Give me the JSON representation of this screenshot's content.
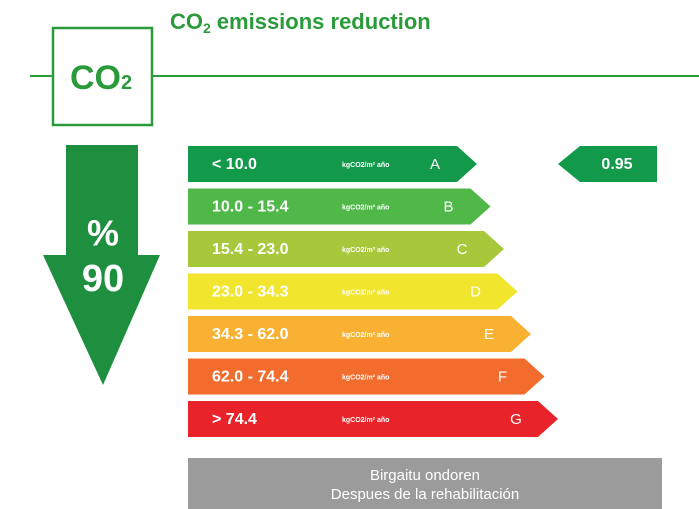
{
  "header": {
    "title": {
      "main": "CO",
      "subscript": "2",
      "rest": "emissions reduction"
    }
  },
  "badge": {
    "text": "CO",
    "subscript": "2"
  },
  "reduction": {
    "symbol": "%",
    "value": "90"
  },
  "bands": [
    {
      "range": "< 10.0",
      "unit": "kgCO2/m² año",
      "letter": "A",
      "color": "#12994a"
    },
    {
      "range": "10.0 - 15.4",
      "unit": "kgCO2/m² año",
      "letter": "B",
      "color": "#4fb848"
    },
    {
      "range": "15.4 - 23.0",
      "unit": "kgCO2/m² año",
      "letter": "C",
      "color": "#a8c83c"
    },
    {
      "range": "23.0 - 34.3",
      "unit": "kgCO2/m² año",
      "letter": "D",
      "color": "#f1e52d"
    },
    {
      "range": "34.3 - 62.0",
      "unit": "kgCO2/m² año",
      "letter": "E",
      "color": "#f8b133"
    },
    {
      "range": "62.0 - 74.4",
      "unit": "kgCO2/m² año",
      "letter": "F",
      "color": "#f26d2d"
    },
    {
      "range": "> 74.4",
      "unit": "kgCO2/m² año",
      "letter": "G",
      "color": "#e8242a"
    }
  ],
  "indicator": {
    "value": "0.95",
    "color": "#12994a"
  },
  "footer": {
    "lines": [
      "Birgaitu ondoren",
      "Despues de la rehabilitación"
    ]
  }
}
